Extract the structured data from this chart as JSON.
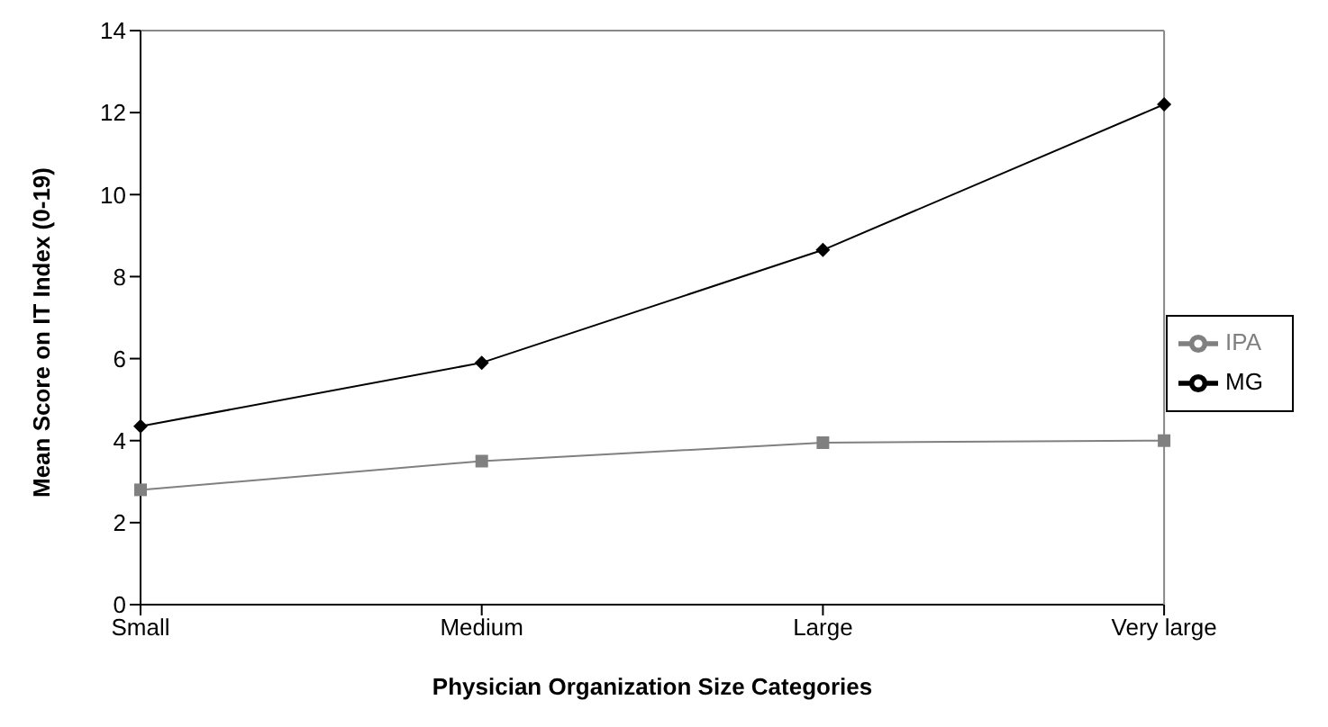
{
  "chart_data": {
    "type": "line",
    "xlabel": "Physician Organization Size Categories",
    "ylabel": "Mean Score on IT Index (0-19)",
    "categories": [
      "Small",
      "Medium",
      "Large",
      "Very large"
    ],
    "series": [
      {
        "name": "MG",
        "color": "#000000",
        "marker": "diamond",
        "values": [
          4.35,
          5.9,
          8.65,
          12.2
        ]
      },
      {
        "name": "IPA",
        "color": "#808080",
        "marker": "square",
        "values": [
          2.8,
          3.5,
          3.95,
          4.0
        ]
      }
    ],
    "ylim": [
      0,
      14
    ],
    "yticks": [
      0,
      2,
      4,
      6,
      8,
      10,
      12,
      14
    ],
    "grid": false,
    "legend": "right"
  }
}
